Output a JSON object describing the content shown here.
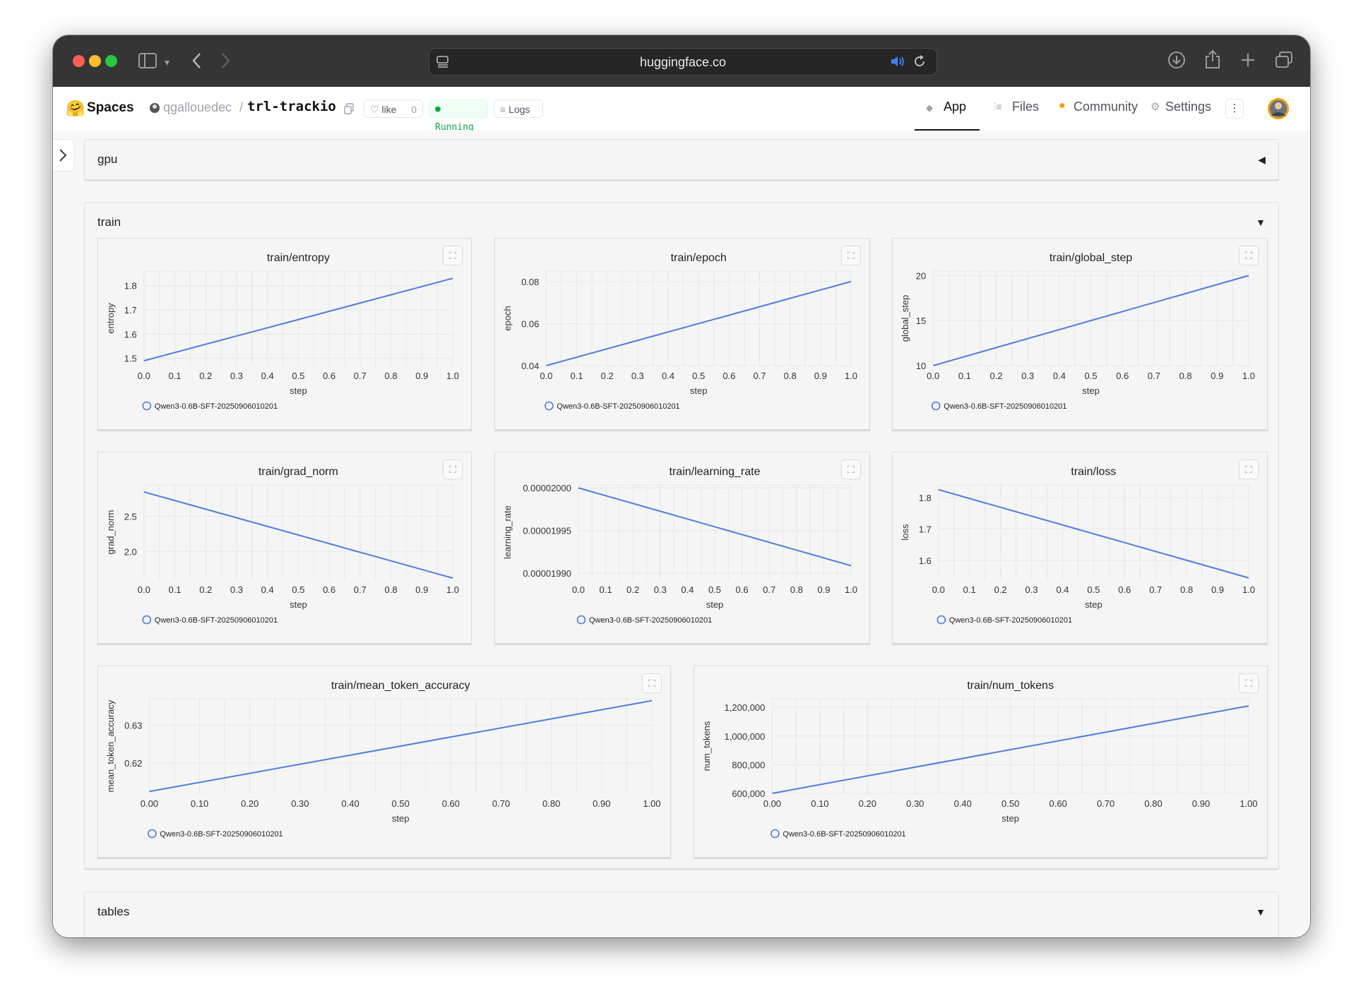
{
  "browser": {
    "url": "huggingface.co"
  },
  "hf_nav": {
    "spaces_label": "Spaces",
    "owner": "qgallouedec",
    "separator": "/",
    "repo": "trl-trackio",
    "like_label": "like",
    "like_count": "0",
    "status": "Running",
    "logs_label": "Logs",
    "tabs": [
      {
        "label": "App",
        "active": true
      },
      {
        "label": "Files",
        "active": false
      },
      {
        "label": "Community",
        "active": false
      },
      {
        "label": "Settings",
        "active": false
      }
    ],
    "more_label": "⋮"
  },
  "sections": {
    "gpu": {
      "title": "gpu",
      "collapsed": true
    },
    "train": {
      "title": "train",
      "collapsed": false
    },
    "tables": {
      "title": "tables",
      "collapsed": false
    }
  },
  "colors": {
    "line": "#4f7ddc",
    "grid": "#e6e6e6",
    "running": "#16a34a"
  },
  "chart_data": [
    {
      "type": "line",
      "title": "train/entropy",
      "xlabel": "step",
      "ylabel": "entropy",
      "x": [
        0.0,
        1.0
      ],
      "xlim": [
        0,
        1
      ],
      "xticks": [
        "0.0",
        "0.1",
        "0.2",
        "0.3",
        "0.4",
        "0.5",
        "0.6",
        "0.7",
        "0.8",
        "0.9",
        "1.0"
      ],
      "ylim": [
        1.47,
        1.86
      ],
      "yticks": [
        1.5,
        1.6,
        1.7,
        1.8
      ],
      "yticklabels": [
        "1.5",
        "1.6",
        "1.7",
        "1.8"
      ],
      "series": [
        {
          "name": "Qwen3-0.6B-SFT-20250906010201",
          "values": [
            1.49,
            1.83
          ]
        }
      ],
      "grid": true,
      "legend": "bottom-left"
    },
    {
      "type": "line",
      "title": "train/epoch",
      "xlabel": "step",
      "ylabel": "epoch",
      "x": [
        0.0,
        1.0
      ],
      "xlim": [
        0,
        1
      ],
      "xticks": [
        "0.0",
        "0.1",
        "0.2",
        "0.3",
        "0.4",
        "0.5",
        "0.6",
        "0.7",
        "0.8",
        "0.9",
        "1.0"
      ],
      "ylim": [
        0.04,
        0.085
      ],
      "yticks": [
        0.04,
        0.06,
        0.08
      ],
      "yticklabels": [
        "0.04",
        "0.06",
        "0.08"
      ],
      "series": [
        {
          "name": "Qwen3-0.6B-SFT-20250906010201",
          "values": [
            0.04,
            0.08
          ]
        }
      ],
      "grid": true,
      "legend": "bottom-left"
    },
    {
      "type": "line",
      "title": "train/global_step",
      "xlabel": "step",
      "ylabel": "global_step",
      "x": [
        0.0,
        1.0
      ],
      "xlim": [
        0,
        1
      ],
      "xticks": [
        "0.0",
        "0.1",
        "0.2",
        "0.3",
        "0.4",
        "0.5",
        "0.6",
        "0.7",
        "0.8",
        "0.9",
        "1.0"
      ],
      "ylim": [
        10,
        20.5
      ],
      "yticks": [
        10,
        15,
        20
      ],
      "yticklabels": [
        "10",
        "15",
        "20"
      ],
      "series": [
        {
          "name": "Qwen3-0.6B-SFT-20250906010201",
          "values": [
            10,
            20
          ]
        }
      ],
      "grid": true,
      "legend": "bottom-left"
    },
    {
      "type": "line",
      "title": "train/grad_norm",
      "xlabel": "step",
      "ylabel": "grad_norm",
      "x": [
        0.0,
        1.0
      ],
      "xlim": [
        0,
        1
      ],
      "xticks": [
        "0.0",
        "0.1",
        "0.2",
        "0.3",
        "0.4",
        "0.5",
        "0.6",
        "0.7",
        "0.8",
        "0.9",
        "1.0"
      ],
      "ylim": [
        1.6,
        2.95
      ],
      "yticks": [
        2.0,
        2.5
      ],
      "yticklabels": [
        "2.0",
        "2.5"
      ],
      "series": [
        {
          "name": "Qwen3-0.6B-SFT-20250906010201",
          "values": [
            2.85,
            1.62
          ]
        }
      ],
      "grid": true,
      "legend": "bottom-left"
    },
    {
      "type": "line",
      "title": "train/learning_rate",
      "xlabel": "step",
      "ylabel": "learning_rate",
      "x": [
        0.0,
        1.0
      ],
      "xlim": [
        0,
        1
      ],
      "xticks": [
        "0.0",
        "0.1",
        "0.2",
        "0.3",
        "0.4",
        "0.5",
        "0.6",
        "0.7",
        "0.8",
        "0.9",
        "1.0"
      ],
      "ylim": [
        1.98927e-05,
        2.00035e-05
      ],
      "yticks": [
        1.99e-05,
        1.995e-05,
        2e-05
      ],
      "yticklabels": [
        "0.00001990",
        "0.00001995",
        "0.00002000"
      ],
      "series": [
        {
          "name": "Qwen3-0.6B-SFT-20250906010201",
          "values": [
            2e-05,
            1.99089e-05
          ]
        }
      ],
      "grid": true,
      "legend": "bottom-left"
    },
    {
      "type": "line",
      "title": "train/loss",
      "xlabel": "step",
      "ylabel": "loss",
      "x": [
        0.0,
        1.0
      ],
      "xlim": [
        0,
        1
      ],
      "xticks": [
        "0.0",
        "0.1",
        "0.2",
        "0.3",
        "0.4",
        "0.5",
        "0.6",
        "0.7",
        "0.8",
        "0.9",
        "1.0"
      ],
      "ylim": [
        1.54,
        1.84
      ],
      "yticks": [
        1.6,
        1.7,
        1.8
      ],
      "yticklabels": [
        "1.6",
        "1.7",
        "1.8"
      ],
      "series": [
        {
          "name": "Qwen3-0.6B-SFT-20250906010201",
          "values": [
            1.825,
            1.545
          ]
        }
      ],
      "grid": true,
      "legend": "bottom-left"
    },
    {
      "type": "line",
      "title": "train/mean_token_accuracy",
      "xlabel": "step",
      "ylabel": "mean_token_accuracy",
      "x": [
        0.0,
        1.0
      ],
      "xlim": [
        0,
        1
      ],
      "xticks": [
        "0.00",
        "0.10",
        "0.20",
        "0.30",
        "0.40",
        "0.50",
        "0.60",
        "0.70",
        "0.80",
        "0.90",
        "1.00"
      ],
      "ylim": [
        0.612,
        0.637
      ],
      "yticks": [
        0.62,
        0.63
      ],
      "yticklabels": [
        "0.62",
        "0.63"
      ],
      "series": [
        {
          "name": "Qwen3-0.6B-SFT-20250906010201",
          "values": [
            0.6125,
            0.6365
          ]
        }
      ],
      "grid": true,
      "legend": "bottom-left"
    },
    {
      "type": "line",
      "title": "train/num_tokens",
      "xlabel": "step",
      "ylabel": "num_tokens",
      "x": [
        0.0,
        1.0
      ],
      "xlim": [
        0,
        1
      ],
      "xticks": [
        "0.00",
        "0.10",
        "0.20",
        "0.30",
        "0.40",
        "0.50",
        "0.60",
        "0.70",
        "0.80",
        "0.90",
        "1.00"
      ],
      "ylim": [
        600000,
        1260000
      ],
      "yticks": [
        600000,
        800000,
        1000000,
        1200000
      ],
      "yticklabels": [
        "600,000",
        "800,000",
        "1,000,000",
        "1,200,000"
      ],
      "series": [
        {
          "name": "Qwen3-0.6B-SFT-20250906010201",
          "values": [
            600000,
            1210000
          ]
        }
      ],
      "grid": true,
      "legend": "bottom-left"
    }
  ]
}
